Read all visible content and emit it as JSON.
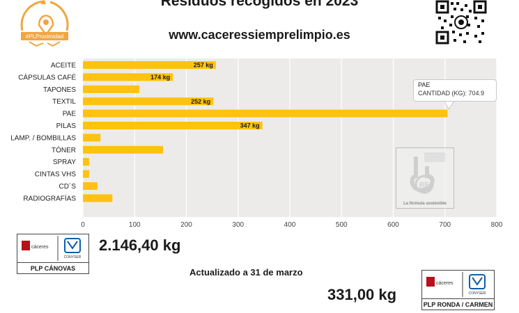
{
  "header": {
    "title": "Residuos recogidos en 2023",
    "url": "www.caceressiemprelimpio.es",
    "logo_hashtag": "#PLProximidad"
  },
  "chart_data": {
    "type": "bar",
    "orientation": "horizontal",
    "categories": [
      "ACEITE",
      "CÁPSULAS CAFÉ",
      "TAPONES",
      "TEXTIL",
      "PAE",
      "PILAS",
      "LAMP. / BOMBILLAS",
      "TÓNER",
      "SPRAY",
      "CINTAS VHS",
      "CD´S",
      "RADIOGRAFÍAS"
    ],
    "values": [
      257,
      174,
      109,
      252,
      704.9,
      347,
      34,
      155,
      12,
      12,
      28,
      57
    ],
    "data_labels": [
      "257 kg",
      "174 kg",
      "",
      "252  kg",
      "",
      "347 kg",
      "",
      "",
      "",
      "",
      "",
      ""
    ],
    "xlim": [
      0,
      800
    ],
    "xticks": [
      0,
      100,
      200,
      300,
      400,
      500,
      600,
      700,
      800
    ],
    "grid": true,
    "bar_color": "#FFC20E",
    "plot_bg": "#ECEBE9",
    "tooltip": {
      "title": "PAE",
      "label": "CANTIDAD (KG):",
      "value": "704.9"
    }
  },
  "watermark": {
    "logo_text": "RE",
    "caption": "La fórmula sostenible"
  },
  "badges": [
    {
      "caption": "PLP CÁNOVAS",
      "total": "2.146,40 kg",
      "brand_left": "cáceres",
      "brand_right": "CONYSER"
    },
    {
      "caption": "PLP RONDA / CARMEN",
      "total": "331,00 kg",
      "brand_left": "cáceres",
      "brand_right": "CONYSER"
    }
  ],
  "updated": "Actualizado a 31 de marzo",
  "colors": {
    "accent": "#FFC20E",
    "logo_orange": "#F0A640",
    "conyser_blue": "#0D5EA8",
    "caceres_red": "#B5121B"
  }
}
